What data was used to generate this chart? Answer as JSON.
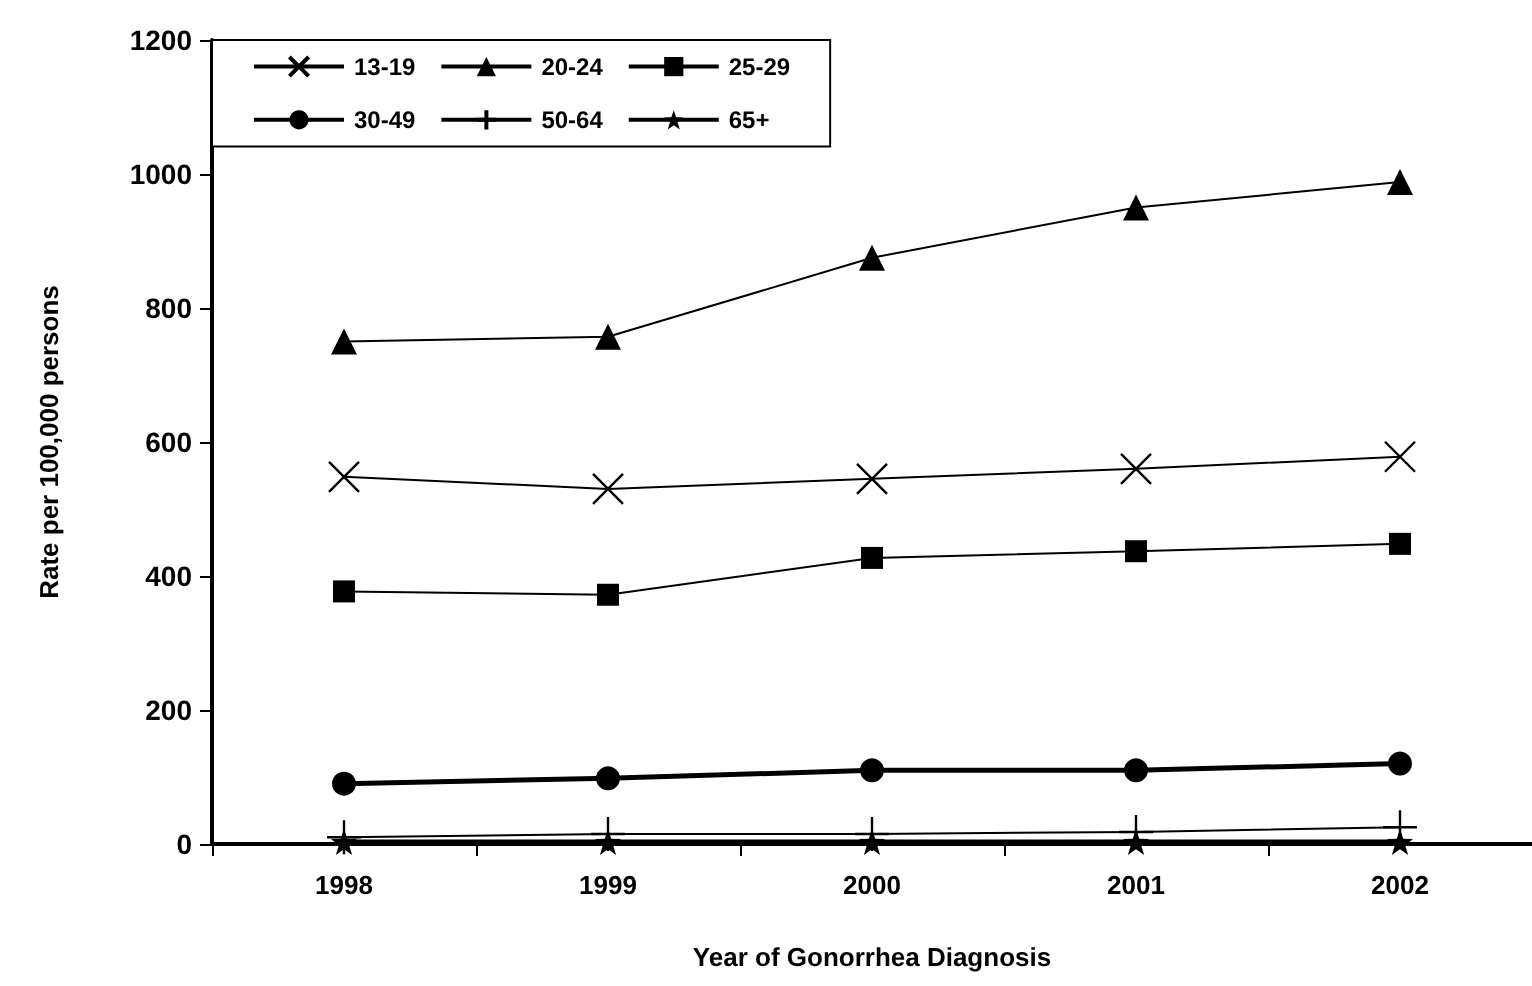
{
  "chart_data": {
    "type": "line",
    "xlabel": "Year of Gonorrhea Diagnosis",
    "ylabel": "Rate per 100,000 persons",
    "categories": [
      "1998",
      "1999",
      "2000",
      "2001",
      "2002"
    ],
    "series": [
      {
        "name": "13-19",
        "color": "#000000",
        "marker": "cross",
        "values": [
          548,
          530,
          545,
          560,
          578
        ]
      },
      {
        "name": "20-24",
        "color": "#000000",
        "marker": "triangle",
        "values": [
          750,
          757,
          875,
          950,
          988
        ]
      },
      {
        "name": "25-29",
        "color": "#000000",
        "marker": "square",
        "values": [
          377,
          372,
          427,
          437,
          448
        ]
      },
      {
        "name": "30-49",
        "color": "#000000",
        "marker": "circle",
        "values": [
          90,
          98,
          110,
          110,
          120
        ]
      },
      {
        "name": "50-64",
        "color": "#000000",
        "marker": "plus",
        "values": [
          10,
          15,
          15,
          18,
          25
        ]
      },
      {
        "name": "65+",
        "color": "#000000",
        "marker": "star",
        "values": [
          3,
          3,
          3,
          3,
          3
        ]
      }
    ],
    "ylim": [
      0,
      1200
    ],
    "yticks": [
      0,
      200,
      400,
      600,
      800,
      1000,
      1200
    ],
    "grid": false,
    "legend": "top left",
    "line_style": "solid"
  }
}
